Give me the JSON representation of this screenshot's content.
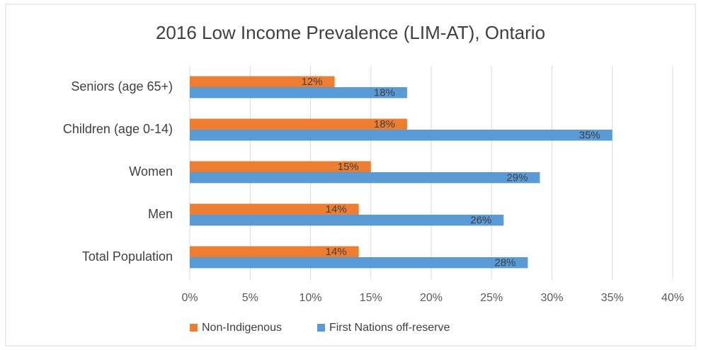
{
  "chart_data": {
    "type": "bar",
    "orientation": "horizontal",
    "title": "2016 Low Income Prevalence (LIM-AT), Ontario",
    "categories": [
      "Seniors (age 65+)",
      "Children (age 0-14)",
      "Women",
      "Men",
      "Total Population"
    ],
    "series": [
      {
        "name": "Non-Indigenous",
        "color": "#ed7d31",
        "values": [
          12,
          18,
          15,
          14,
          14
        ],
        "value_labels": [
          "12%",
          "18%",
          "15%",
          "14%",
          "14%"
        ]
      },
      {
        "name": "First Nations off-reserve",
        "color": "#5b9bd5",
        "values": [
          18,
          35,
          29,
          26,
          28
        ],
        "value_labels": [
          "18%",
          "35%",
          "29%",
          "26%",
          "28%"
        ]
      }
    ],
    "xlim": [
      0,
      40
    ],
    "xticks": [
      {
        "value": 0,
        "label": "0%"
      },
      {
        "value": 5,
        "label": "5%"
      },
      {
        "value": 10,
        "label": "10%"
      },
      {
        "value": 15,
        "label": "15%"
      },
      {
        "value": 20,
        "label": "20%"
      },
      {
        "value": 25,
        "label": "25%"
      },
      {
        "value": 30,
        "label": "30%"
      },
      {
        "value": 35,
        "label": "35%"
      },
      {
        "value": 40,
        "label": "40%"
      }
    ],
    "grid": true,
    "legend": "bottom"
  }
}
